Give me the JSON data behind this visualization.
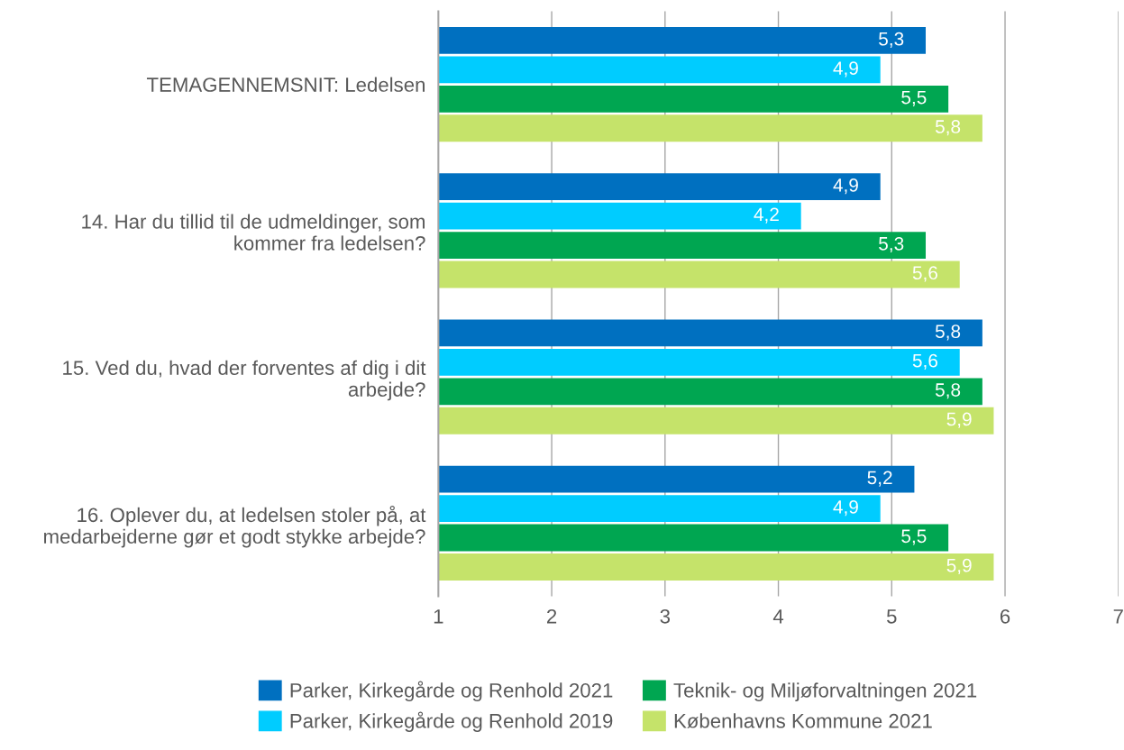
{
  "chart_data": {
    "type": "bar",
    "orientation": "horizontal",
    "categories": [
      "TEMAGENNEMSNIT: Ledelsen",
      "14. Har du tillid til de udmeldinger, som\nkommer fra ledelsen?",
      "15. Ved du, hvad der forventes af dig i dit\narbejde?",
      "16. Oplever du, at ledelsen stoler på, at\nmedarbejderne gør et godt stykke arbejde?"
    ],
    "series": [
      {
        "name": "Parker, Kirkegårde og Renhold 2021",
        "color": "#0070c0",
        "values": [
          5.3,
          4.9,
          5.8,
          5.2
        ],
        "value_labels": [
          "5,3",
          "4,9",
          "5,8",
          "5,2"
        ]
      },
      {
        "name": "Parker, Kirkegårde og Renhold 2019",
        "color": "#00ccff",
        "values": [
          4.9,
          4.2,
          5.6,
          4.9
        ],
        "value_labels": [
          "4,9",
          "4,2",
          "5,6",
          "4,9"
        ]
      },
      {
        "name": "Teknik- og Miljøforvaltningen 2021",
        "color": "#00a651",
        "values": [
          5.5,
          5.3,
          5.8,
          5.5
        ],
        "value_labels": [
          "5,5",
          "5,3",
          "5,8",
          "5,5"
        ]
      },
      {
        "name": "Københavns Kommune 2021",
        "color": "#c5e36a",
        "values": [
          5.8,
          5.6,
          5.9,
          5.9
        ],
        "value_labels": [
          "5,8",
          "5,6",
          "5,9",
          "5,9"
        ]
      }
    ],
    "xlim": [
      1,
      7
    ],
    "xticks": [
      1,
      2,
      3,
      4,
      5,
      6,
      7
    ],
    "grid": "x",
    "legend": "bottom"
  }
}
